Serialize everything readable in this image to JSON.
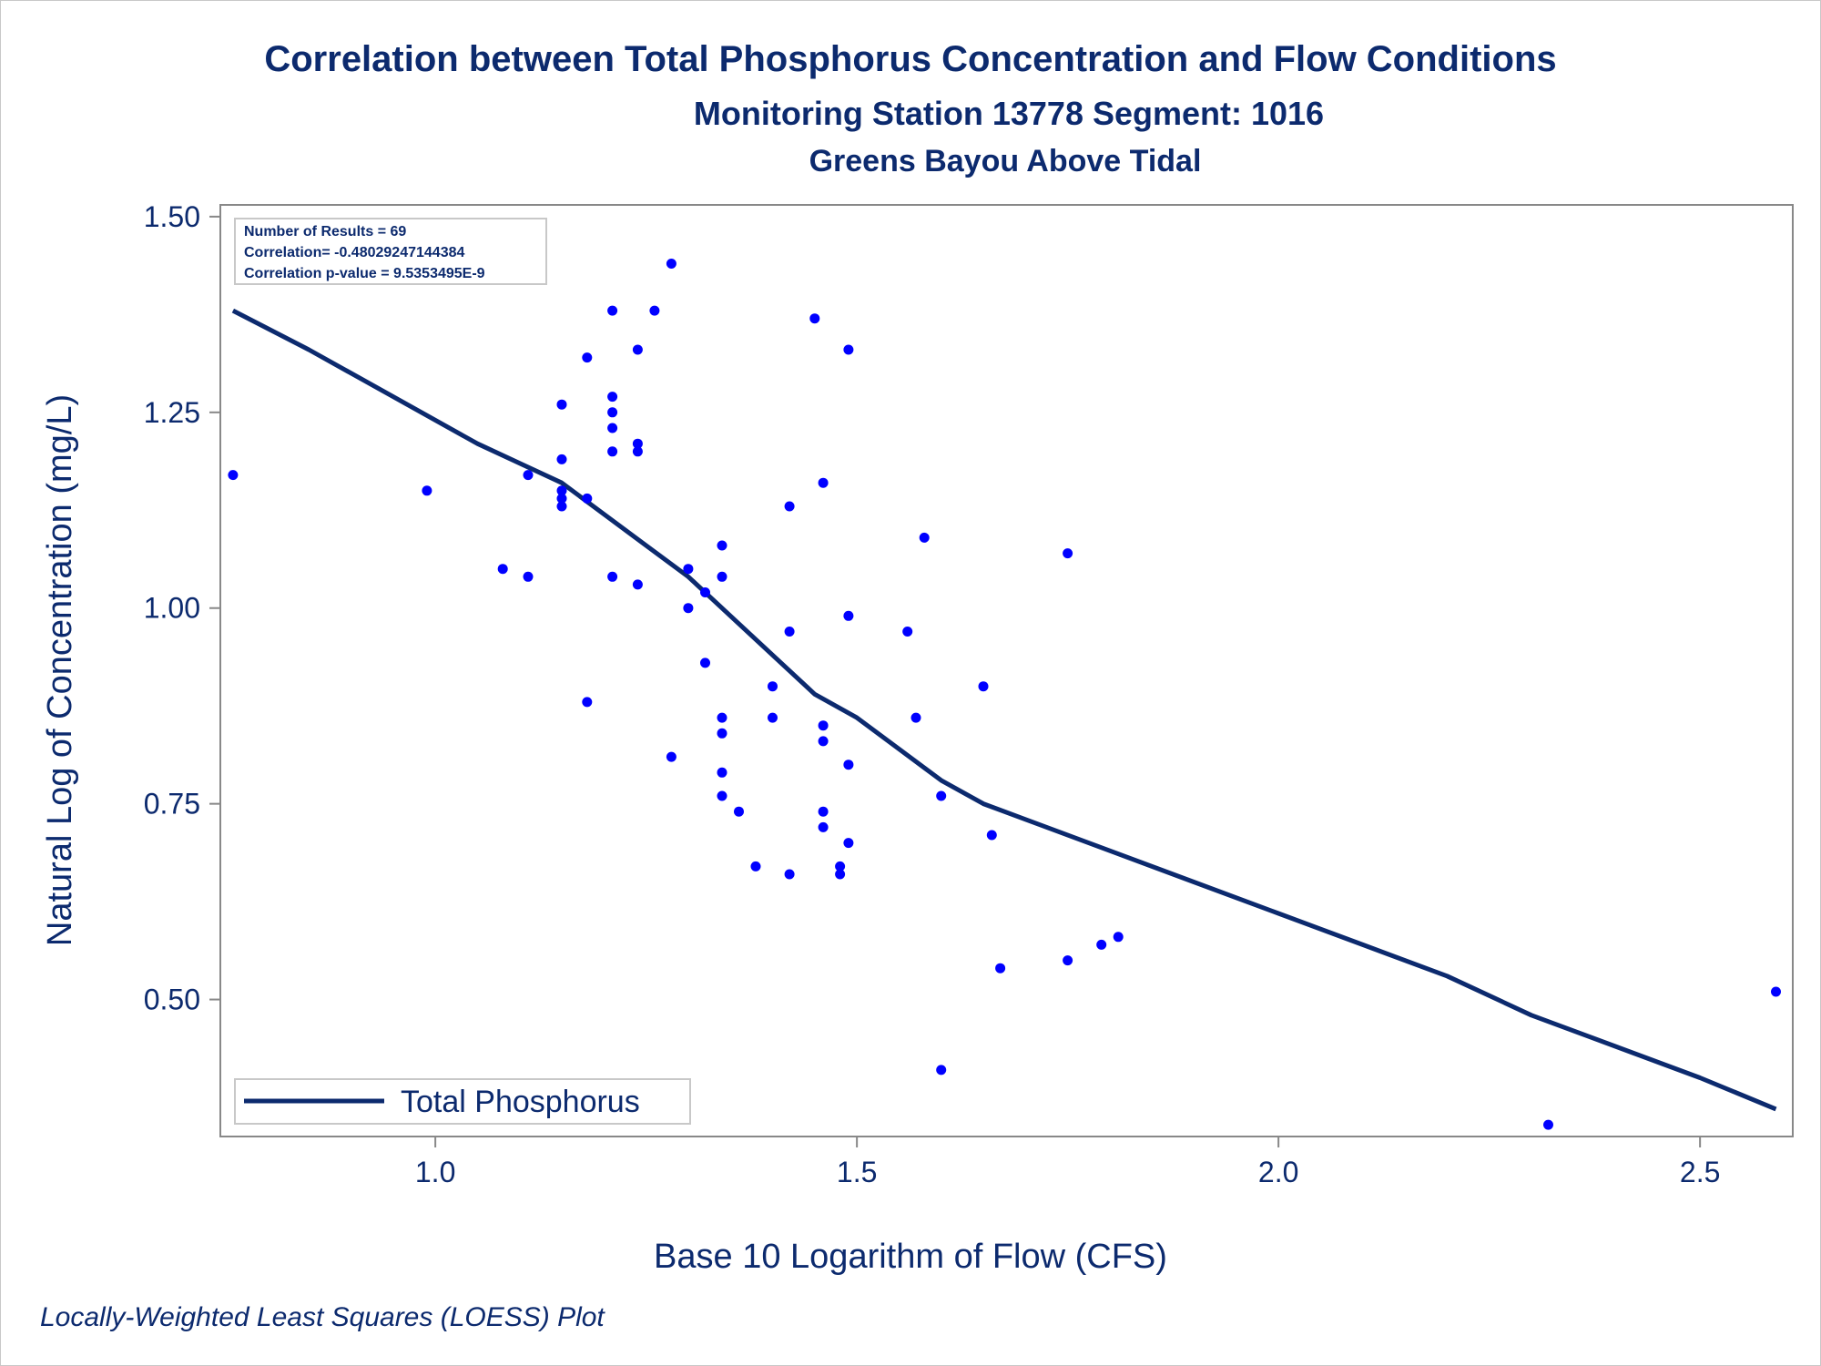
{
  "titles": {
    "title": "Correlation between Total Phosphorus Concentration and Flow Conditions",
    "subtitle": "Monitoring Station 13778 Segment: 1016",
    "subtitle2": "Greens Bayou Above Tidal"
  },
  "stats": {
    "line1": "Number of Results = 69",
    "line2": "Correlation= -0.48029247144384",
    "line3": "Correlation p-value = 9.5353495E-9"
  },
  "footnote": "Locally-Weighted Least Squares (LOESS) Plot",
  "colors": {
    "text": "#0c2a6e",
    "points": "#0000ff",
    "line": "#0c2a6e",
    "axis": "#888888"
  },
  "chart_data": {
    "type": "scatter",
    "xlabel": "Base 10 Logarithm of Flow (CFS)",
    "ylabel": "Natural Log of Concentration (mg/L)",
    "xlim": [
      0.745,
      2.61
    ],
    "ylim": [
      0.325,
      1.515
    ],
    "xticks": [
      {
        "value": 1.0,
        "label": "1.0"
      },
      {
        "value": 1.5,
        "label": "1.5"
      },
      {
        "value": 2.0,
        "label": "2.0"
      },
      {
        "value": 2.5,
        "label": "2.5"
      }
    ],
    "yticks": [
      {
        "value": 0.5,
        "label": "0.50"
      },
      {
        "value": 0.75,
        "label": "0.75"
      },
      {
        "value": 1.0,
        "label": "1.00"
      },
      {
        "value": 1.25,
        "label": "1.25"
      },
      {
        "value": 1.5,
        "label": "1.50"
      }
    ],
    "grid": false,
    "legend": {
      "position": "bottom-left",
      "label": "Total Phosphorus"
    },
    "points": [
      [
        0.76,
        1.17
      ],
      [
        0.99,
        1.15
      ],
      [
        1.08,
        1.05
      ],
      [
        1.11,
        1.04
      ],
      [
        1.11,
        1.17
      ],
      [
        1.15,
        1.26
      ],
      [
        1.15,
        1.19
      ],
      [
        1.15,
        1.15
      ],
      [
        1.15,
        1.14
      ],
      [
        1.15,
        1.13
      ],
      [
        1.18,
        1.32
      ],
      [
        1.18,
        1.14
      ],
      [
        1.18,
        0.88
      ],
      [
        1.21,
        1.38
      ],
      [
        1.21,
        1.27
      ],
      [
        1.21,
        1.25
      ],
      [
        1.21,
        1.23
      ],
      [
        1.21,
        1.2
      ],
      [
        1.21,
        1.04
      ],
      [
        1.24,
        1.33
      ],
      [
        1.24,
        1.21
      ],
      [
        1.24,
        1.2
      ],
      [
        1.24,
        1.03
      ],
      [
        1.26,
        1.38
      ],
      [
        1.28,
        1.44
      ],
      [
        1.28,
        0.81
      ],
      [
        1.3,
        1.05
      ],
      [
        1.3,
        1.0
      ],
      [
        1.32,
        1.02
      ],
      [
        1.32,
        0.93
      ],
      [
        1.34,
        1.08
      ],
      [
        1.34,
        1.04
      ],
      [
        1.34,
        0.86
      ],
      [
        1.34,
        0.84
      ],
      [
        1.34,
        0.79
      ],
      [
        1.34,
        0.76
      ],
      [
        1.36,
        0.74
      ],
      [
        1.38,
        0.67
      ],
      [
        1.4,
        0.9
      ],
      [
        1.4,
        0.86
      ],
      [
        1.42,
        1.13
      ],
      [
        1.42,
        0.97
      ],
      [
        1.42,
        0.66
      ],
      [
        1.45,
        1.37
      ],
      [
        1.46,
        1.16
      ],
      [
        1.46,
        0.85
      ],
      [
        1.46,
        0.83
      ],
      [
        1.46,
        0.74
      ],
      [
        1.46,
        0.72
      ],
      [
        1.48,
        0.67
      ],
      [
        1.48,
        0.66
      ],
      [
        1.49,
        1.33
      ],
      [
        1.49,
        0.99
      ],
      [
        1.49,
        0.8
      ],
      [
        1.49,
        0.7
      ],
      [
        1.56,
        0.97
      ],
      [
        1.57,
        0.86
      ],
      [
        1.58,
        1.09
      ],
      [
        1.6,
        0.76
      ],
      [
        1.6,
        0.41
      ],
      [
        1.65,
        0.9
      ],
      [
        1.66,
        0.71
      ],
      [
        1.67,
        0.54
      ],
      [
        1.75,
        1.07
      ],
      [
        1.75,
        0.55
      ],
      [
        1.79,
        0.57
      ],
      [
        1.81,
        0.58
      ],
      [
        2.32,
        0.34
      ],
      [
        2.59,
        0.51
      ]
    ],
    "loess": [
      [
        0.76,
        1.38
      ],
      [
        0.85,
        1.33
      ],
      [
        0.95,
        1.27
      ],
      [
        1.05,
        1.21
      ],
      [
        1.15,
        1.16
      ],
      [
        1.2,
        1.12
      ],
      [
        1.25,
        1.08
      ],
      [
        1.3,
        1.04
      ],
      [
        1.35,
        0.99
      ],
      [
        1.4,
        0.94
      ],
      [
        1.45,
        0.89
      ],
      [
        1.5,
        0.86
      ],
      [
        1.55,
        0.82
      ],
      [
        1.6,
        0.78
      ],
      [
        1.65,
        0.75
      ],
      [
        1.7,
        0.73
      ],
      [
        1.8,
        0.69
      ],
      [
        1.9,
        0.65
      ],
      [
        2.0,
        0.61
      ],
      [
        2.1,
        0.57
      ],
      [
        2.2,
        0.53
      ],
      [
        2.3,
        0.48
      ],
      [
        2.4,
        0.44
      ],
      [
        2.5,
        0.4
      ],
      [
        2.59,
        0.36
      ]
    ]
  }
}
